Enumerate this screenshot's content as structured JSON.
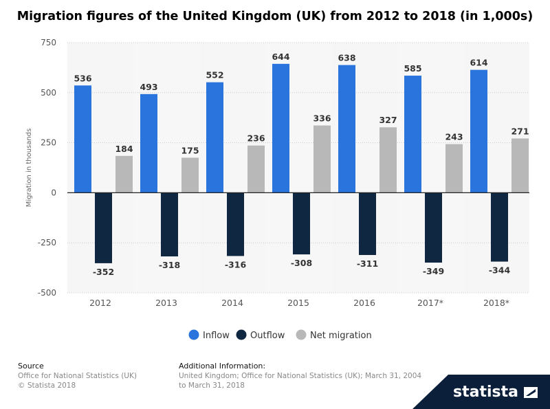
{
  "page": {
    "title": "Migration figures of the United Kingdom (UK) from 2012 to 2018 (in 1,000s)"
  },
  "chart_data": {
    "type": "bar",
    "title": "Migration figures of the United Kingdom (UK) from 2012 to 2018 (in 1,000s)",
    "xlabel": "",
    "ylabel": "Migration in thousands",
    "ylim": [
      -500,
      750
    ],
    "yticks": [
      "750",
      "500",
      "250",
      "0",
      "-250",
      "-500"
    ],
    "categories": [
      "2012",
      "2013",
      "2014",
      "2015",
      "2016",
      "2017*",
      "2018*"
    ],
    "series": [
      {
        "name": "Inflow",
        "color": "#2a74de",
        "values": [
          536,
          493,
          552,
          644,
          638,
          585,
          614
        ]
      },
      {
        "name": "Outflow",
        "color": "#0f2741",
        "values": [
          -352,
          -318,
          -316,
          -308,
          -311,
          -349,
          -344
        ]
      },
      {
        "name": "Net migration",
        "color": "#b8b8b8",
        "values": [
          184,
          175,
          236,
          336,
          327,
          243,
          271
        ]
      }
    ],
    "grid": true,
    "legend_position": "bottom"
  },
  "footer": {
    "source_head": "Source",
    "source_line1": "Office for National Statistics (UK)",
    "source_line2": "© Statista 2018",
    "info_head": "Additional Information:",
    "info_line1": "United Kingdom; Office for National Statistics (UK); March 31, 2004",
    "info_line2": "to March 31, 2018"
  },
  "brand": {
    "name": "statista"
  }
}
